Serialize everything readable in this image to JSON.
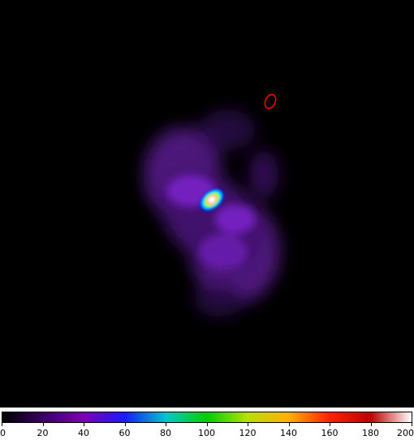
{
  "colorbar": {
    "ticks": [
      "0",
      "20",
      "40",
      "60",
      "80",
      "100",
      "120",
      "140",
      "160",
      "180",
      "200"
    ],
    "min": 0,
    "max": 200,
    "colors": [
      "#000000",
      "#3b0060",
      "#7a00b8",
      "#1a1aff",
      "#00c8c8",
      "#00d000",
      "#b8e000",
      "#ffb000",
      "#ff2000",
      "#c00000",
      "#ffffff"
    ]
  },
  "image": {
    "background": "#000000",
    "diffuse_color": "#7a22c8",
    "core_colors": [
      "#00e0ff",
      "#00ff00",
      "#ffff00",
      "#ff0000",
      "#ffffff"
    ],
    "marker_color": "#ff0000"
  }
}
